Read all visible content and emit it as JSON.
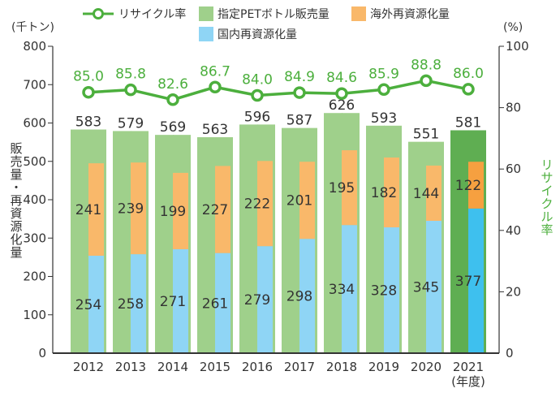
{
  "chart_data": {
    "type": "bar",
    "categories": [
      "2012",
      "2013",
      "2014",
      "2015",
      "2016",
      "2017",
      "2018",
      "2019",
      "2020",
      "2021"
    ],
    "xlabel_suffix": "(年度)",
    "y_left": {
      "label": "販売量・再資源化量",
      "unit": "(千トン)",
      "ylim": [
        0,
        800
      ],
      "ticks": [
        0,
        100,
        200,
        300,
        400,
        500,
        600,
        700,
        800
      ]
    },
    "y_right": {
      "label": "リサイクル率",
      "unit": "(%)",
      "ylim": [
        0,
        100
      ],
      "ticks": [
        0,
        20,
        40,
        60,
        80,
        100
      ]
    },
    "series": [
      {
        "name": "指定PETボトル販売量",
        "type": "bar",
        "color": "#9fd08b",
        "highlight_color": "#5fae52",
        "values": [
          583,
          579,
          569,
          563,
          596,
          587,
          626,
          593,
          551,
          581
        ]
      },
      {
        "name": "国内再資源化量",
        "type": "stacked-bar",
        "color": "#8fd5f5",
        "highlight_color": "#3ec0ee",
        "values": [
          254,
          258,
          271,
          261,
          279,
          298,
          334,
          328,
          345,
          377
        ]
      },
      {
        "name": "海外再資源化量",
        "type": "stacked-bar",
        "color": "#f9b86a",
        "highlight_color": "#f6a040",
        "values": [
          241,
          239,
          199,
          227,
          222,
          201,
          195,
          182,
          144,
          122
        ]
      },
      {
        "name": "リサイクル率",
        "type": "line",
        "axis": "right",
        "color": "#4caf3d",
        "values": [
          85.0,
          85.8,
          82.6,
          86.7,
          84.0,
          84.9,
          84.6,
          85.9,
          88.8,
          86.0
        ],
        "labels": [
          "85.0",
          "85.8",
          "82.6",
          "86.7",
          "84.0",
          "84.9",
          "84.6",
          "85.9",
          "88.8",
          "86.0"
        ]
      }
    ],
    "highlight_index": 9,
    "legend_placement": "top"
  }
}
